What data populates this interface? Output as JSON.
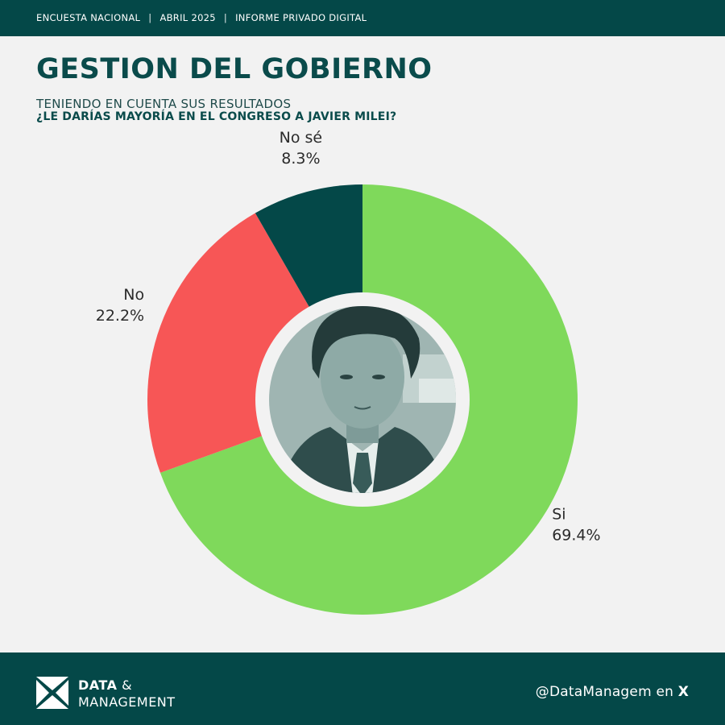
{
  "header": {
    "crumbs": [
      "ENCUESTA NACIONAL",
      "ABRIL 2025",
      "INFORME PRIVADO DIGITAL"
    ],
    "separator": "|"
  },
  "title": "GESTION DEL GOBIERNO",
  "subtitle_line1": "TENIENDO EN CUENTA SUS RESULTADOS",
  "subtitle_line2": "¿LE DARÍAS MAYORÍA EN EL CONGRESO A JAVIER MILEI?",
  "chart_data": {
    "type": "pie",
    "donut": true,
    "center_image": "portrait-photo",
    "slices": [
      {
        "label": "Si",
        "value": 69.4,
        "display": "69.4%",
        "color": "#7fd95b"
      },
      {
        "label": "No",
        "value": 22.2,
        "display": "22.2%",
        "color": "#f75656"
      },
      {
        "label": "No sé",
        "value": 8.3,
        "display": "8.3%",
        "color": "#044848"
      }
    ]
  },
  "footer": {
    "brand_bold": "DATA",
    "brand_amp": "&",
    "brand_line2": "MANAGEMENT",
    "handle_text": "@DataManagem en ",
    "handle_platform": "X"
  },
  "colors": {
    "dark_teal": "#044848",
    "background": "#f2f2f2"
  }
}
